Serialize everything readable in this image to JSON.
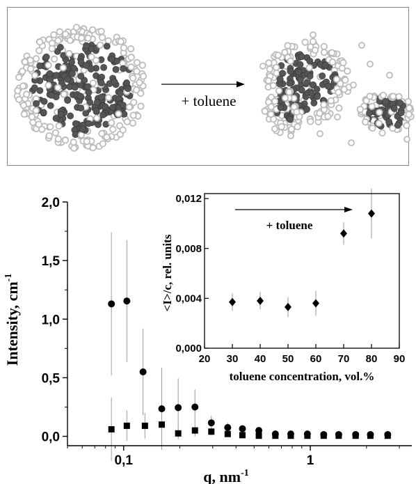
{
  "schematic": {
    "arrow_label": "+ toluene",
    "particle_dark": "#555555",
    "particle_light": "#bbbbbb"
  },
  "chart_data": [
    {
      "type": "scatter",
      "xscale": "log",
      "xlabel": "q, nm",
      "xlabel_sup": "-1",
      "ylabel": "Intensity, cm",
      "ylabel_sup": "-1",
      "xlim": [
        0.05,
        3.5
      ],
      "ylim": [
        -0.08,
        2.0
      ],
      "xticks": [
        {
          "v": 0.1,
          "label": "0,1"
        },
        {
          "v": 1,
          "label": "1"
        }
      ],
      "yticks": [
        {
          "v": 0.0,
          "label": "0,0"
        },
        {
          "v": 0.5,
          "label": "0,5"
        },
        {
          "v": 1.0,
          "label": "1,0"
        },
        {
          "v": 1.5,
          "label": "1,5"
        },
        {
          "v": 2.0,
          "label": "2,0"
        }
      ],
      "series": [
        {
          "marker": "circle",
          "points": [
            {
              "x": 0.086,
              "y": 1.13,
              "err": 0.61
            },
            {
              "x": 0.104,
              "y": 1.155,
              "err": 0.52
            },
            {
              "x": 0.127,
              "y": 0.55,
              "err": 0.37
            },
            {
              "x": 0.16,
              "y": 0.235,
              "err": 0.35
            },
            {
              "x": 0.196,
              "y": 0.245,
              "err": 0.25
            },
            {
              "x": 0.241,
              "y": 0.25,
              "err": 0.15
            },
            {
              "x": 0.295,
              "y": 0.115,
              "err": 0.06
            },
            {
              "x": 0.361,
              "y": 0.075,
              "err": 0.04
            },
            {
              "x": 0.433,
              "y": 0.065,
              "err": 0.03
            },
            {
              "x": 0.53,
              "y": 0.05,
              "err": 0.03
            },
            {
              "x": 0.65,
              "y": 0.02,
              "err": 0.02
            },
            {
              "x": 0.786,
              "y": 0.02,
              "err": 0.02
            },
            {
              "x": 0.965,
              "y": 0.02,
              "err": 0.02
            },
            {
              "x": 1.18,
              "y": 0.015,
              "err": 0.02
            },
            {
              "x": 1.42,
              "y": 0.015,
              "err": 0.02
            },
            {
              "x": 1.75,
              "y": 0.015,
              "err": 0.02
            },
            {
              "x": 2.1,
              "y": 0.015,
              "err": 0.02
            },
            {
              "x": 2.6,
              "y": 0.015,
              "err": 0.02
            }
          ]
        },
        {
          "marker": "square",
          "points": [
            {
              "x": 0.086,
              "y": 0.06,
              "err": 0.27
            },
            {
              "x": 0.104,
              "y": 0.09,
              "err": 0.13
            },
            {
              "x": 0.13,
              "y": 0.09,
              "err": 0.11
            },
            {
              "x": 0.16,
              "y": 0.1,
              "err": 0.12
            },
            {
              "x": 0.196,
              "y": 0.025,
              "err": 0.05
            },
            {
              "x": 0.241,
              "y": 0.05,
              "err": 0.05
            },
            {
              "x": 0.295,
              "y": 0.04,
              "err": 0.03
            },
            {
              "x": 0.361,
              "y": 0.02,
              "err": 0.02
            },
            {
              "x": 0.433,
              "y": 0.01,
              "err": 0.02
            },
            {
              "x": 0.53,
              "y": 0.005,
              "err": 0.01
            },
            {
              "x": 0.65,
              "y": 0.005,
              "err": 0.01
            },
            {
              "x": 0.786,
              "y": 0.005,
              "err": 0.01
            },
            {
              "x": 0.965,
              "y": 0.005,
              "err": 0.01
            },
            {
              "x": 1.18,
              "y": 0.005,
              "err": 0.01
            },
            {
              "x": 1.42,
              "y": 0.005,
              "err": 0.01
            },
            {
              "x": 1.75,
              "y": 0.005,
              "err": 0.01
            },
            {
              "x": 2.1,
              "y": 0.005,
              "err": 0.01
            },
            {
              "x": 2.6,
              "y": 0.005,
              "err": 0.01
            }
          ]
        }
      ]
    },
    {
      "type": "scatter",
      "xlabel": "toluene concentration, vol.%",
      "ylabel": "<I>/c, rel. units",
      "xlim": [
        20,
        90
      ],
      "ylim": [
        0.0,
        0.0124
      ],
      "xticks": [
        {
          "v": 20,
          "label": "20"
        },
        {
          "v": 30,
          "label": "30"
        },
        {
          "v": 40,
          "label": "40"
        },
        {
          "v": 50,
          "label": "50"
        },
        {
          "v": 60,
          "label": "60"
        },
        {
          "v": 70,
          "label": "70"
        },
        {
          "v": 80,
          "label": "80"
        },
        {
          "v": 90,
          "label": "90"
        }
      ],
      "yticks": [
        {
          "v": 0.0,
          "label": "0,000"
        },
        {
          "v": 0.004,
          "label": "0,004"
        },
        {
          "v": 0.008,
          "label": "0,008"
        },
        {
          "v": 0.012,
          "label": "0,012"
        }
      ],
      "annotation": "+ toluene",
      "series": [
        {
          "marker": "diamond",
          "points": [
            {
              "x": 30,
              "y": 0.0037,
              "err": 0.0007
            },
            {
              "x": 40,
              "y": 0.0038,
              "err": 0.0007
            },
            {
              "x": 50,
              "y": 0.0033,
              "err": 0.0008
            },
            {
              "x": 60,
              "y": 0.0036,
              "err": 0.001
            },
            {
              "x": 70,
              "y": 0.0092,
              "err": 0.0009
            },
            {
              "x": 80,
              "y": 0.0108,
              "err": 0.002
            }
          ]
        }
      ]
    }
  ]
}
